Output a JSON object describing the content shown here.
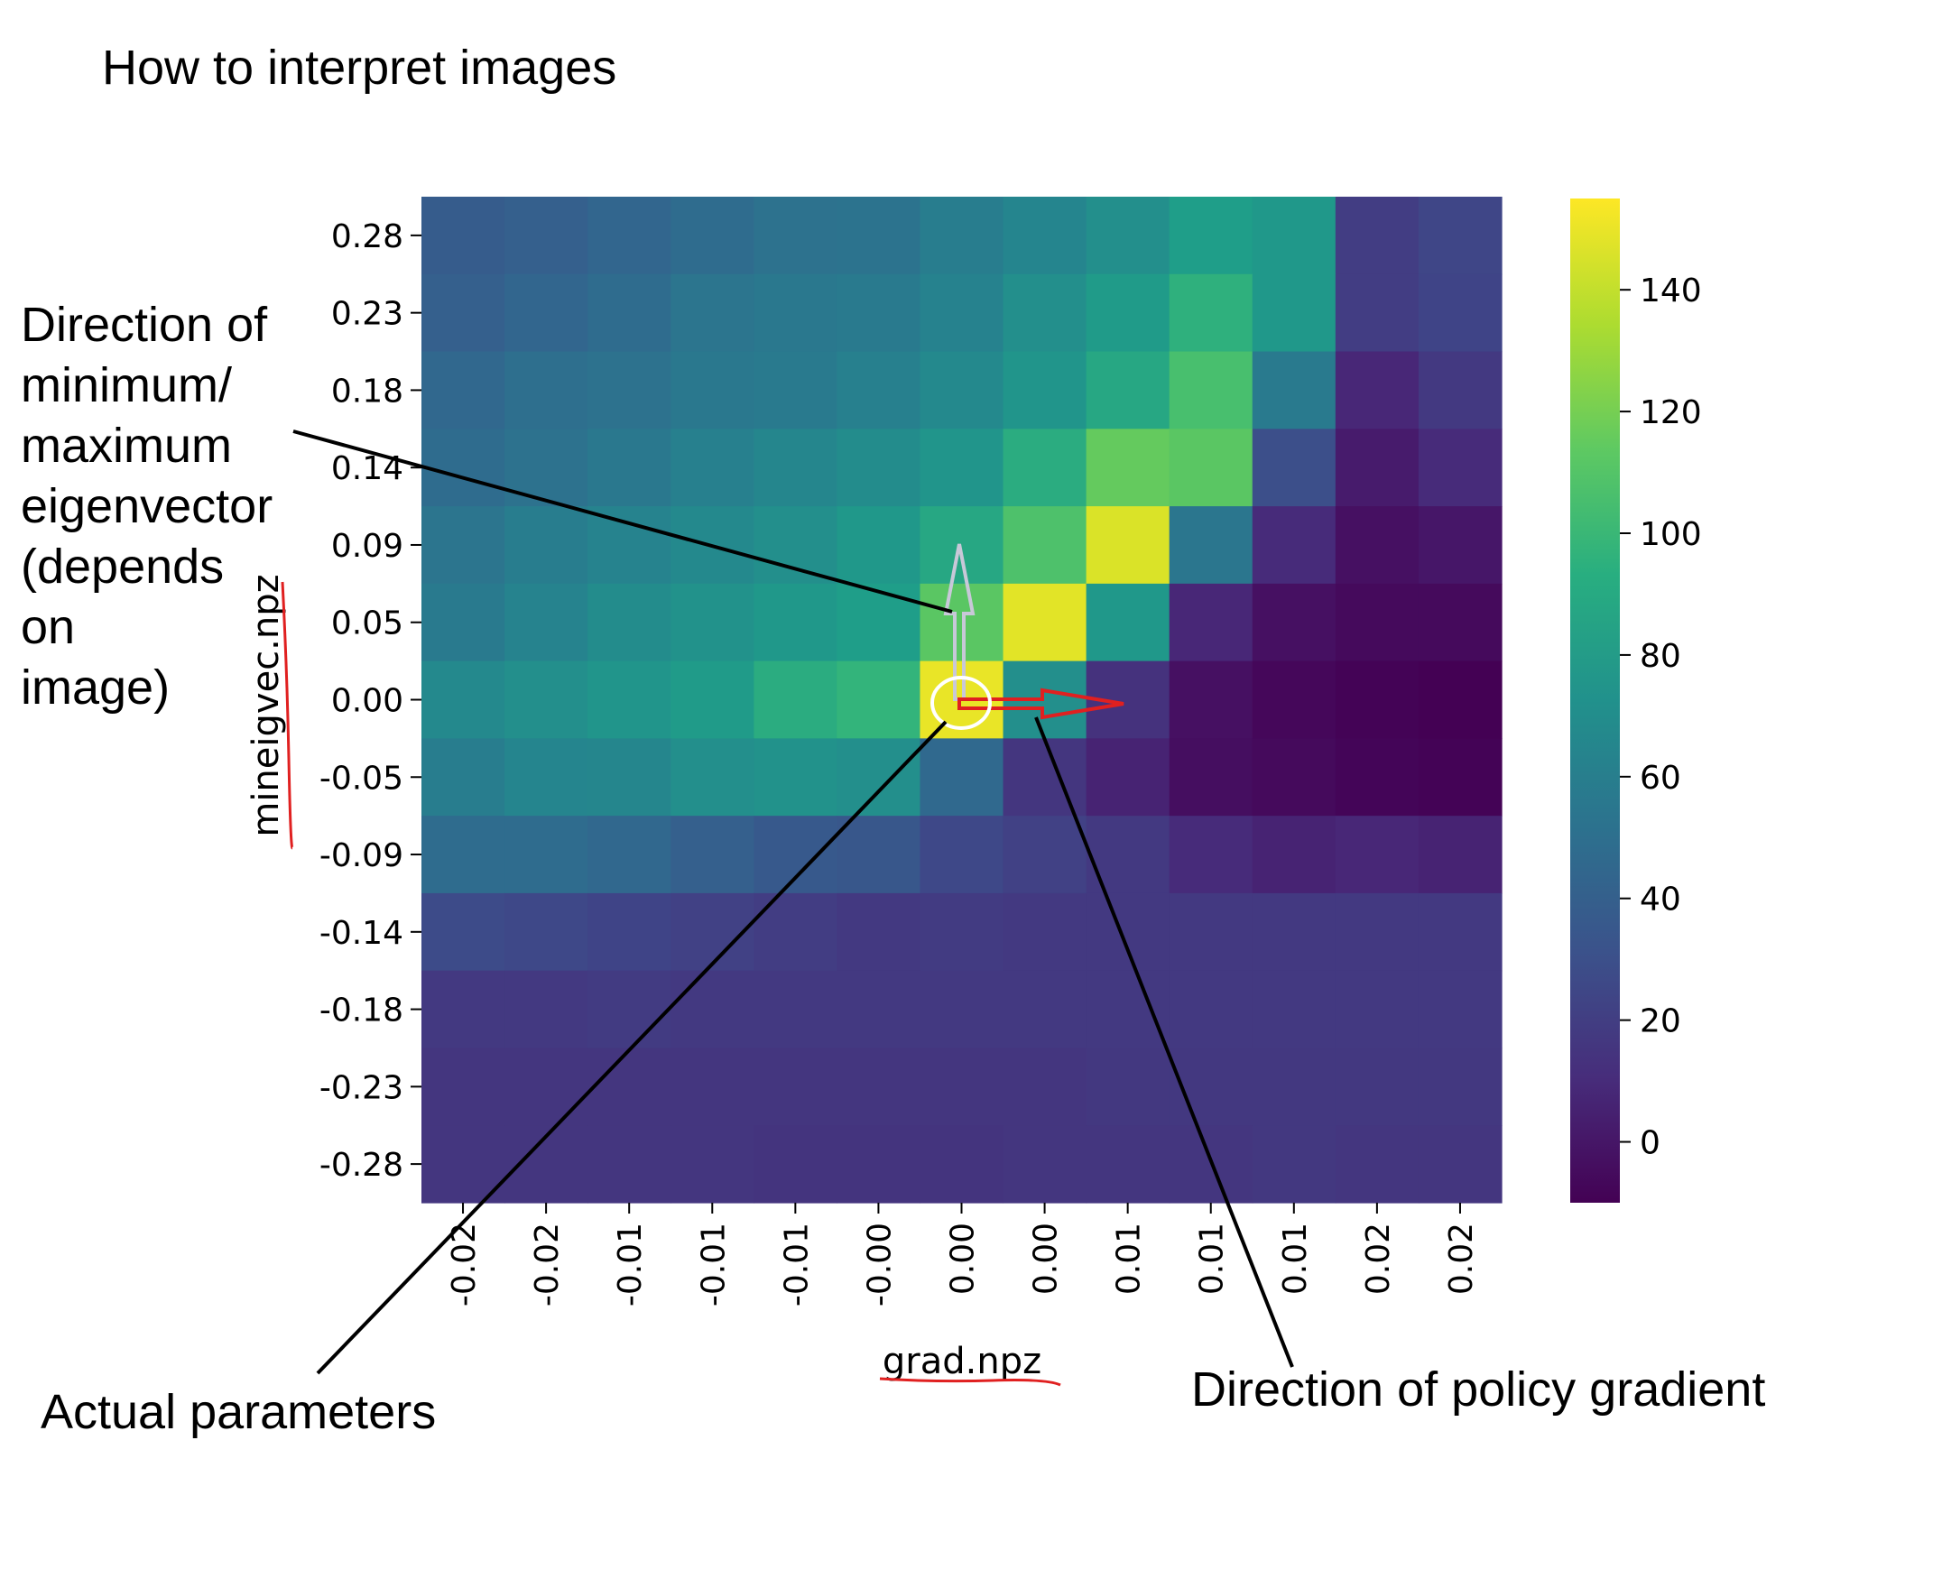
{
  "header": {
    "title": "How to interpret images"
  },
  "annotations": {
    "eigenvector_lines": [
      "Direction of",
      "minimum/",
      "maximum",
      "eigenvector",
      "(depends",
      "on",
      "image)"
    ],
    "actual_parameters": "Actual parameters",
    "policy_gradient": "Direction of policy gradient",
    "colors": {
      "eigen_arrow": "#c8c8d8",
      "grad_arrow": "#e02020",
      "marker_circle": "#ffffff",
      "pen_underline": "#e02020",
      "leader_line": "#000000"
    }
  },
  "chart_data": {
    "type": "heatmap",
    "title": "",
    "xlabel": "grad.npz",
    "ylabel": "mineigvec.npz",
    "x_ticklabels": [
      "-0.02",
      "-0.02",
      "-0.01",
      "-0.01",
      "-0.01",
      "-0.00",
      "0.00",
      "0.00",
      "0.01",
      "0.01",
      "0.01",
      "0.02",
      "0.02"
    ],
    "y_ticklabels": [
      "0.28",
      "0.23",
      "0.18",
      "0.14",
      "0.09",
      "0.05",
      "0.00",
      "-0.05",
      "-0.09",
      "-0.14",
      "-0.18",
      "-0.23",
      "-0.28"
    ],
    "colormap": "viridis",
    "vmin": -10,
    "vmax": 155,
    "colorbar_ticks": [
      0,
      20,
      40,
      60,
      80,
      100,
      120,
      140
    ],
    "values": [
      [
        38,
        40,
        44,
        48,
        52,
        53,
        60,
        65,
        72,
        82,
        78,
        20,
        null
      ],
      [
        40,
        44,
        48,
        54,
        56,
        58,
        63,
        72,
        80,
        95,
        78,
        20,
        null
      ],
      [
        45,
        50,
        52,
        56,
        58,
        62,
        68,
        76,
        88,
        106,
        58,
        8,
        null
      ],
      [
        48,
        52,
        56,
        62,
        66,
        70,
        76,
        92,
        115,
        112,
        30,
        2,
        null
      ],
      [
        54,
        60,
        64,
        68,
        72,
        78,
        88,
        108,
        146,
        55,
        10,
        -3,
        null
      ],
      [
        58,
        64,
        70,
        74,
        78,
        82,
        112,
        148,
        78,
        8,
        -3,
        -6,
        null
      ],
      [
        68,
        72,
        76,
        80,
        92,
        98,
        150,
        72,
        14,
        -3,
        -7,
        -9,
        null
      ],
      [
        60,
        65,
        66,
        72,
        74,
        72,
        46,
        16,
        6,
        -4,
        -6,
        -8,
        null
      ],
      [
        48,
        48,
        45,
        40,
        36,
        35,
        26,
        22,
        18,
        10,
        6,
        8,
        null
      ],
      [
        28,
        26,
        24,
        22,
        20,
        18,
        19,
        18,
        18,
        18,
        18,
        18,
        null
      ],
      [
        18,
        18,
        19,
        18,
        18,
        18,
        18,
        18,
        18,
        18,
        18,
        18,
        null
      ],
      [
        16,
        16,
        16,
        16,
        16,
        16,
        16,
        16,
        17,
        17,
        17,
        17,
        null
      ],
      [
        16,
        16,
        16,
        16,
        15,
        15,
        15,
        16,
        16,
        16,
        17,
        16,
        null
      ]
    ],
    "values_note_columns": [
      [
        25,
        24,
        18,
        10,
        0,
        -6,
        -10,
        -9,
        6,
        18,
        18,
        17,
        16
      ]
    ],
    "grid": false,
    "colorbar": "right"
  }
}
